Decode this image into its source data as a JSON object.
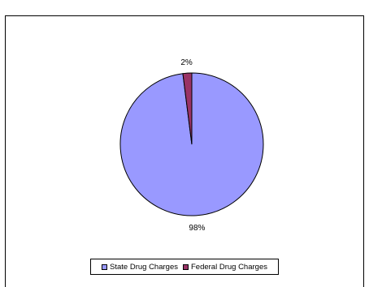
{
  "chart_data": {
    "type": "pie",
    "title": "",
    "slices": [
      {
        "label": "State Drug Charges",
        "value": 98,
        "label_text": "98%",
        "color": "#9999ff"
      },
      {
        "label": "Federal Drug Charges",
        "value": 2,
        "label_text": "2%",
        "color": "#993366"
      }
    ],
    "legend_position": "bottom",
    "border_color": "#000000"
  }
}
